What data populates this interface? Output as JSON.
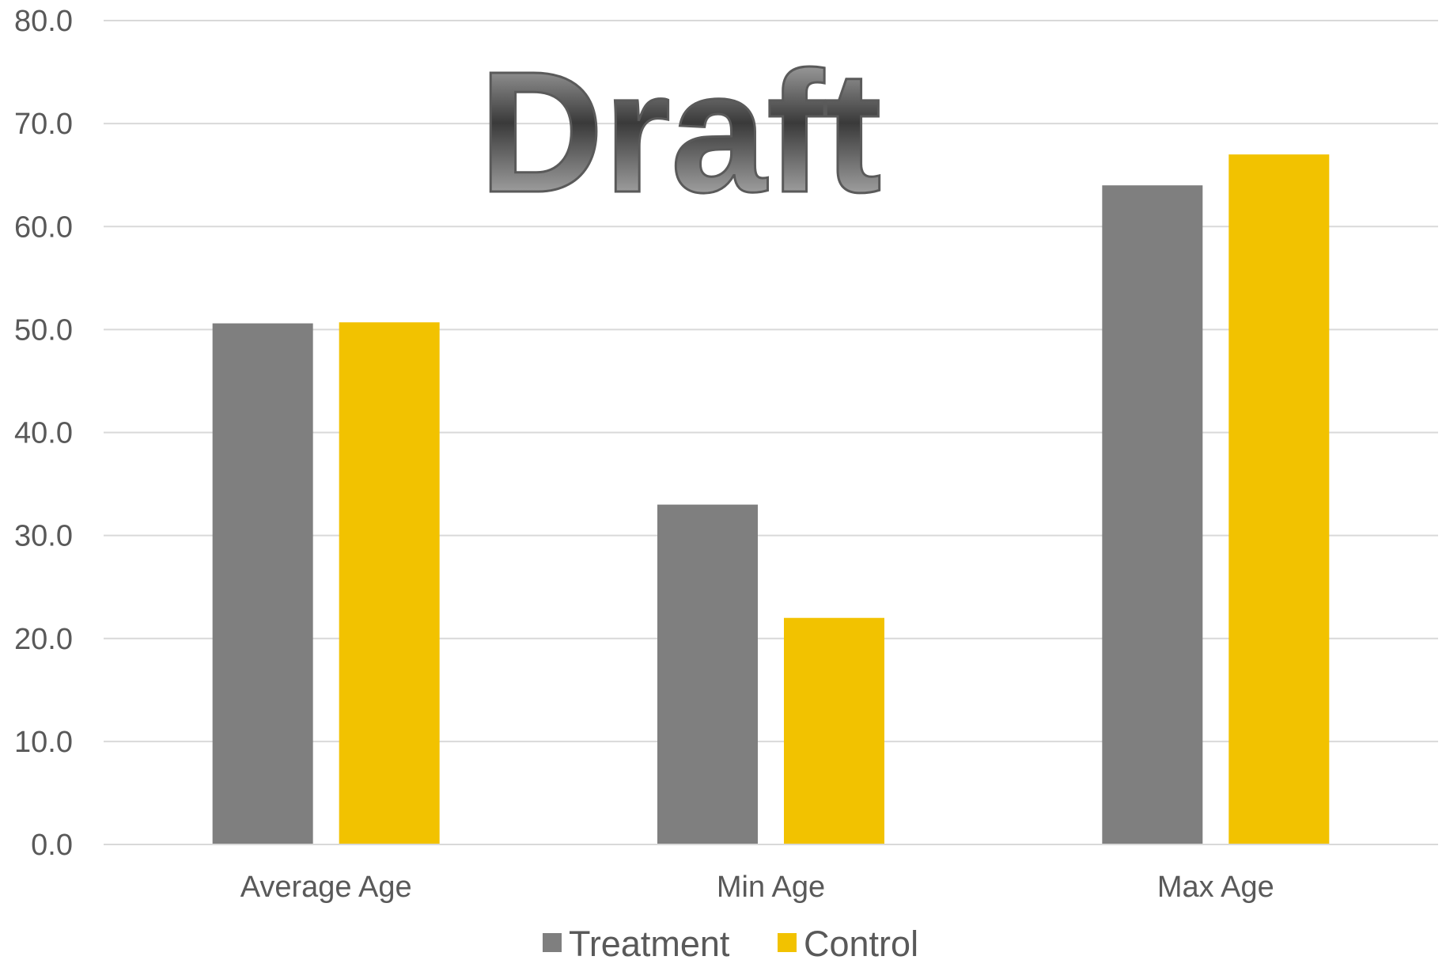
{
  "chart_data": {
    "type": "bar",
    "categories": [
      "Average Age",
      "Min Age",
      "Max Age"
    ],
    "series": [
      {
        "name": "Treatment",
        "values": [
          50.6,
          33.0,
          64.0
        ],
        "color": "#7f7f7f"
      },
      {
        "name": "Control",
        "values": [
          50.7,
          22.0,
          67.0
        ],
        "color": "#f2c200"
      }
    ],
    "title": "",
    "xlabel": "",
    "ylabel": "",
    "ylim": [
      0,
      80
    ],
    "yticks": [
      "0.0",
      "10.0",
      "20.0",
      "30.0",
      "40.0",
      "50.0",
      "60.0",
      "70.0",
      "80.0"
    ],
    "grid": true,
    "gridline_color": "#d9d9d9",
    "legend_position": "bottom",
    "watermark": "Draft"
  }
}
